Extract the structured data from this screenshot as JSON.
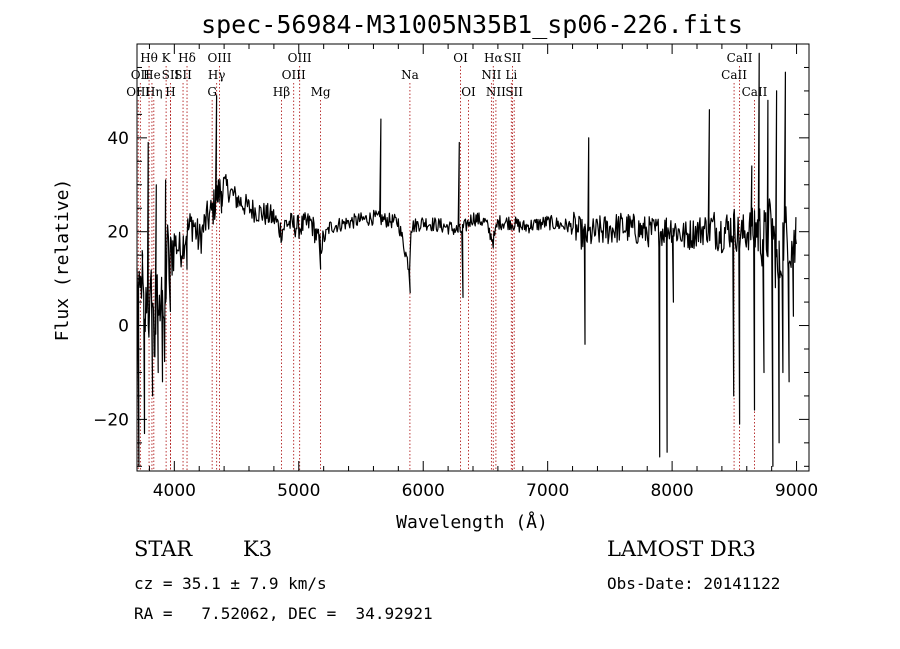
{
  "chart_data": {
    "type": "line",
    "title": "spec-56984-M31005N35B1_sp06-226.fits",
    "xlabel": "Wavelength (Å)",
    "ylabel": "Flux (relative)",
    "xlim": [
      3700,
      9100
    ],
    "ylim": [
      -31,
      60
    ],
    "xticks": [
      4000,
      5000,
      6000,
      7000,
      8000,
      9000
    ],
    "yticks": [
      -20,
      0,
      20,
      40
    ],
    "line_color": "#000000",
    "marker_color": "#b22222",
    "spectrum_anchors": {
      "x": [
        3700,
        3720,
        3740,
        3760,
        3780,
        3800,
        3820,
        3840,
        3860,
        3880,
        3900,
        3920,
        3940,
        3960,
        3980,
        4000,
        4050,
        4100,
        4150,
        4200,
        4250,
        4300,
        4350,
        4400,
        4500,
        4600,
        4700,
        4800,
        4861,
        4900,
        5000,
        5100,
        5175,
        5250,
        5400,
        5600,
        5800,
        5890,
        5900,
        6000,
        6200,
        6300,
        6400,
        6500,
        6563,
        6600,
        6700,
        6800,
        7000,
        7200,
        7300,
        7400,
        7600,
        7800,
        7900,
        8000,
        8100,
        8200,
        8300,
        8400,
        8500,
        8540,
        8600,
        8662,
        8700,
        8750,
        8800,
        8850,
        8900,
        8950,
        9000
      ],
      "y": [
        10,
        4,
        12,
        -2,
        8,
        0,
        10,
        -6,
        6,
        2,
        14,
        -10,
        18,
        12,
        16,
        18,
        16,
        20,
        22,
        18,
        22,
        24,
        28,
        30,
        27,
        25,
        24,
        23,
        20,
        22,
        21,
        22,
        17,
        21,
        22,
        23,
        22,
        12,
        21,
        22,
        21,
        20,
        23,
        22,
        18,
        22,
        22,
        21,
        22,
        21,
        19,
        20,
        21,
        20,
        20,
        21,
        19,
        20,
        21,
        20,
        21,
        19,
        20,
        21,
        20,
        18,
        22,
        10,
        20,
        18,
        16
      ]
    },
    "spectrum_spikes": [
      {
        "x": 3715,
        "y": -30
      },
      {
        "x": 3745,
        "y": 15
      },
      {
        "x": 3760,
        "y": -23
      },
      {
        "x": 3790,
        "y": 39
      },
      {
        "x": 3825,
        "y": -15
      },
      {
        "x": 3855,
        "y": 30
      },
      {
        "x": 3870,
        "y": -10
      },
      {
        "x": 3905,
        "y": -12
      },
      {
        "x": 3930,
        "y": 31
      },
      {
        "x": 3968,
        "y": 3
      },
      {
        "x": 4102,
        "y": 12
      },
      {
        "x": 4340,
        "y": 49
      },
      {
        "x": 4380,
        "y": 24
      },
      {
        "x": 5175,
        "y": 12
      },
      {
        "x": 5660,
        "y": 44
      },
      {
        "x": 5895,
        "y": 7
      },
      {
        "x": 6290,
        "y": 39
      },
      {
        "x": 6320,
        "y": 6
      },
      {
        "x": 7300,
        "y": -4
      },
      {
        "x": 7330,
        "y": 40
      },
      {
        "x": 7900,
        "y": -28
      },
      {
        "x": 7960,
        "y": -27
      },
      {
        "x": 8010,
        "y": 5
      },
      {
        "x": 8300,
        "y": 46
      },
      {
        "x": 8495,
        "y": -15
      },
      {
        "x": 8542,
        "y": -21
      },
      {
        "x": 8640,
        "y": 34
      },
      {
        "x": 8662,
        "y": -18
      },
      {
        "x": 8700,
        "y": 58
      },
      {
        "x": 8738,
        "y": -10
      },
      {
        "x": 8770,
        "y": 48
      },
      {
        "x": 8810,
        "y": -30
      },
      {
        "x": 8840,
        "y": 50
      },
      {
        "x": 8860,
        "y": -25
      },
      {
        "x": 8890,
        "y": -10
      },
      {
        "x": 8910,
        "y": 54
      },
      {
        "x": 8940,
        "y": -12
      },
      {
        "x": 8975,
        "y": 2
      },
      {
        "x": 8995,
        "y": 23
      }
    ],
    "spectral_lines": [
      {
        "label": "Hθ",
        "x": 3797,
        "row": 1
      },
      {
        "label": "OII",
        "x": 3727,
        "row": 2
      },
      {
        "label": "OIII",
        "x": 3710,
        "row": 3
      },
      {
        "label": "He",
        "x": 3820,
        "row": 2
      },
      {
        "label": "Hη",
        "x": 3835,
        "row": 3
      },
      {
        "label": "K",
        "x": 3934,
        "row": 1
      },
      {
        "label": "SII",
        "x": 3969,
        "row": 2
      },
      {
        "label": "H",
        "x": 3969,
        "row": 3
      },
      {
        "label": "Hδ",
        "x": 4102,
        "row": 1
      },
      {
        "label": "SII",
        "x": 4070,
        "row": 2
      },
      {
        "label": "OIII",
        "x": 4363,
        "row": 1
      },
      {
        "label": "Hγ",
        "x": 4340,
        "row": 2
      },
      {
        "label": "G",
        "x": 4304,
        "row": 3
      },
      {
        "label": "Hβ",
        "x": 4861,
        "row": 3
      },
      {
        "label": "OIII",
        "x": 5007,
        "row": 1
      },
      {
        "label": "OIII",
        "x": 4959,
        "row": 2
      },
      {
        "label": "Mg",
        "x": 5175,
        "row": 3
      },
      {
        "label": "Na",
        "x": 5893,
        "row": 2
      },
      {
        "label": "OI",
        "x": 6300,
        "row": 1
      },
      {
        "label": "OI",
        "x": 6364,
        "row": 3
      },
      {
        "label": "Hα",
        "x": 6563,
        "row": 1
      },
      {
        "label": "NII",
        "x": 6548,
        "row": 2
      },
      {
        "label": "NII",
        "x": 6584,
        "row": 3
      },
      {
        "label": "SII",
        "x": 6717,
        "row": 1
      },
      {
        "label": "Li",
        "x": 6708,
        "row": 2
      },
      {
        "label": "SII",
        "x": 6731,
        "row": 3
      },
      {
        "label": "CaII",
        "x": 8542,
        "row": 1
      },
      {
        "label": "CaII",
        "x": 8498,
        "row": 2
      },
      {
        "label": "CaII",
        "x": 8662,
        "row": 3
      }
    ]
  },
  "info": {
    "object_class": "STAR",
    "subclass": "K3",
    "survey": "LAMOST DR3",
    "redshift": "cz = 35.1 ± 7.9 km/s",
    "obs_date": "Obs-Date: 20141122",
    "coords": "RA =   7.52062, DEC =  34.92921"
  }
}
